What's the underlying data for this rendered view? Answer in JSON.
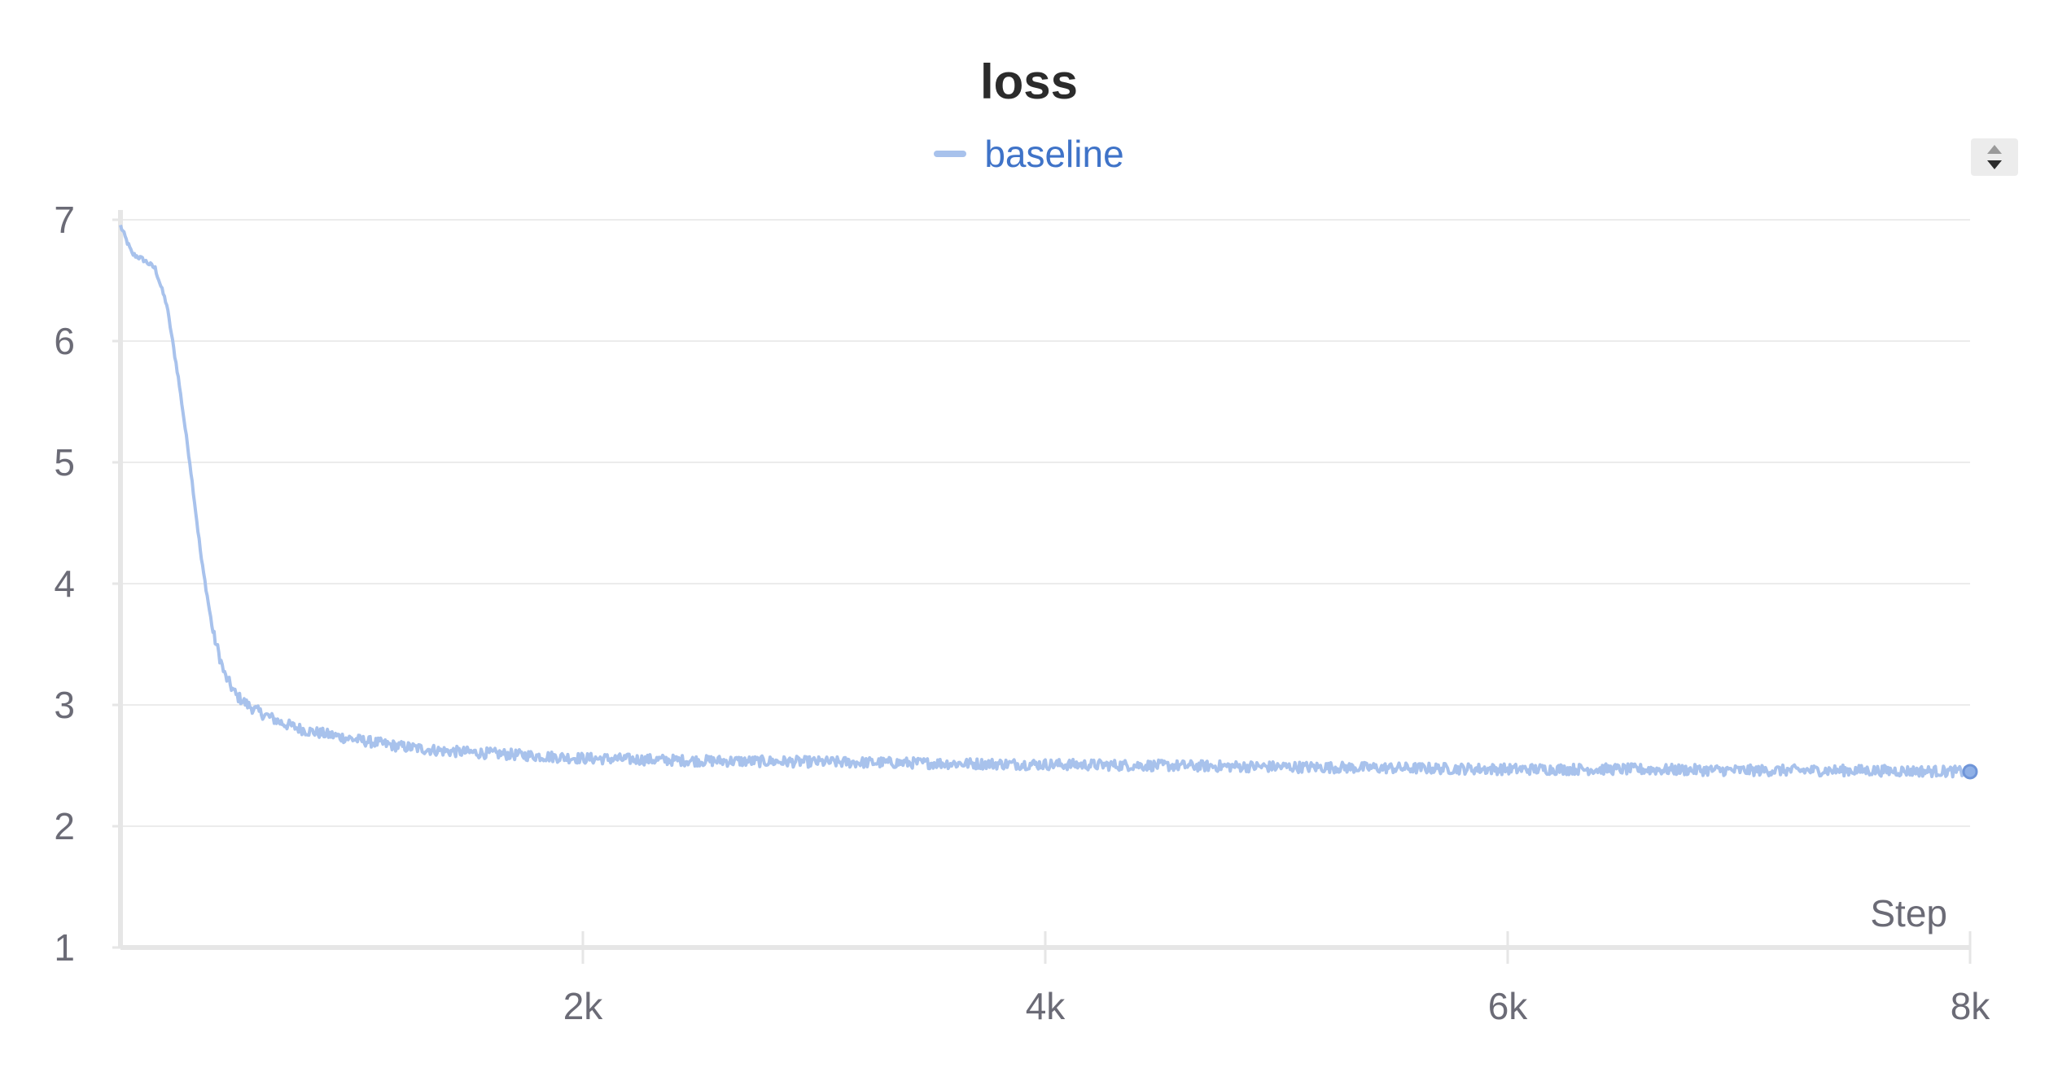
{
  "chart_data": {
    "type": "line",
    "title": "loss",
    "xlabel": "Step",
    "ylabel": "",
    "xlim": [
      0,
      8000
    ],
    "ylim": [
      1,
      7
    ],
    "x_ticks": [
      2000,
      4000,
      6000,
      8000
    ],
    "x_tick_labels": [
      "2k",
      "4k",
      "6k",
      "8k"
    ],
    "y_ticks": [
      1,
      2,
      3,
      4,
      5,
      6,
      7
    ],
    "y_tick_labels": [
      "1",
      "2",
      "3",
      "4",
      "5",
      "6",
      "7"
    ],
    "grid": true,
    "legend": "top-center",
    "series": [
      {
        "name": "baseline",
        "color": "#a8c2ec",
        "x": [
          0,
          50,
          100,
          150,
          200,
          250,
          300,
          350,
          400,
          450,
          500,
          550,
          600,
          700,
          800,
          1000,
          1200,
          1400,
          1600,
          1800,
          2000,
          2500,
          3000,
          3500,
          4000,
          4500,
          5000,
          5500,
          6000,
          6500,
          7000,
          7500,
          8000
        ],
        "values": [
          6.95,
          6.72,
          6.67,
          6.6,
          6.3,
          5.7,
          5.0,
          4.2,
          3.6,
          3.25,
          3.08,
          3.0,
          2.94,
          2.85,
          2.79,
          2.72,
          2.66,
          2.62,
          2.6,
          2.58,
          2.56,
          2.54,
          2.53,
          2.52,
          2.51,
          2.5,
          2.49,
          2.48,
          2.47,
          2.47,
          2.46,
          2.46,
          2.45
        ]
      }
    ]
  },
  "legend_controls": {
    "scroll_icon": "up-down-arrows-icon"
  }
}
